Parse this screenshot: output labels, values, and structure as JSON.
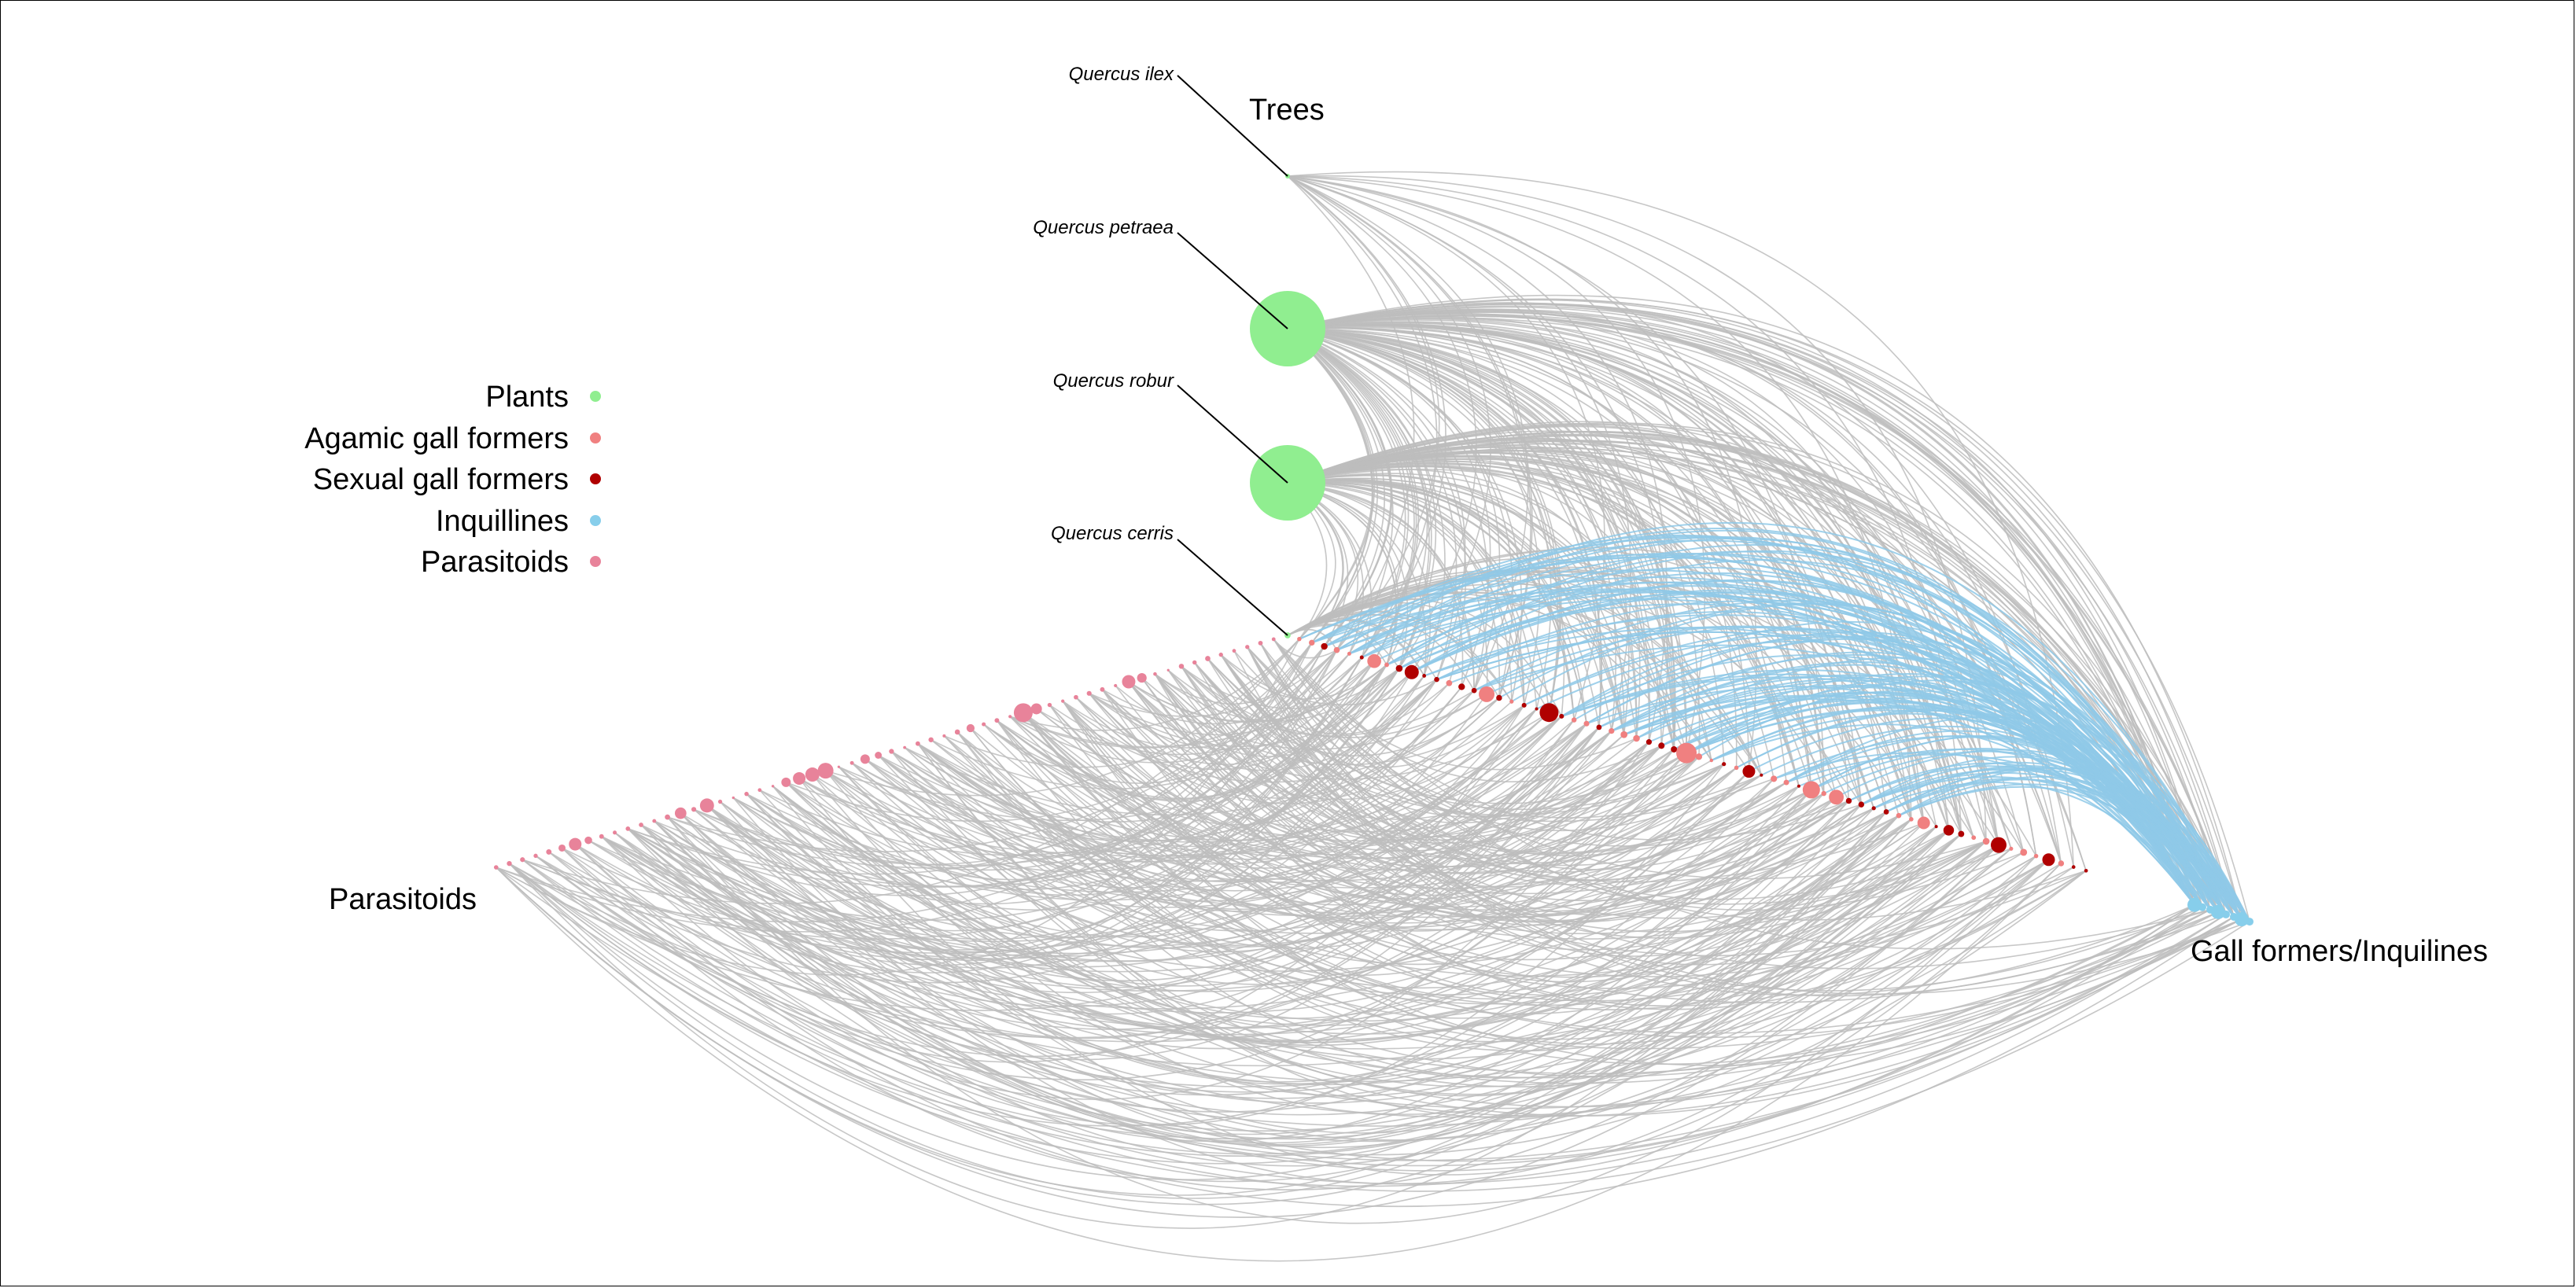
{
  "axis_labels": {
    "trees": "Trees",
    "parasitoids": "Parasitoids",
    "gall": "Gall formers/Inquilines"
  },
  "legend": [
    {
      "label": "Plants",
      "color": "#90ee90"
    },
    {
      "label": "Agamic gall formers",
      "color": "#f08080"
    },
    {
      "label": "Sexual gall formers",
      "color": "#b00000"
    },
    {
      "label": "Inquillines",
      "color": "#87ceeb"
    },
    {
      "label": "Parasitoids",
      "color": "#e8839a"
    }
  ],
  "trees": [
    {
      "name": "Quercus ilex",
      "size": 0.05
    },
    {
      "name": "Quercus petraea",
      "size": 1.0
    },
    {
      "name": "Quercus robur",
      "size": 1.0
    },
    {
      "name": "Quercus cerris",
      "size": 0.08
    }
  ],
  "colors": {
    "edge": "#bdbdbd",
    "edge_inquiline": "#8fc9e8",
    "plant": "#90ee90",
    "agamic": "#f08080",
    "sexual": "#b00000",
    "inquiline": "#87ceeb",
    "parasitoid": "#e8839a",
    "pointer": "#000000"
  }
}
